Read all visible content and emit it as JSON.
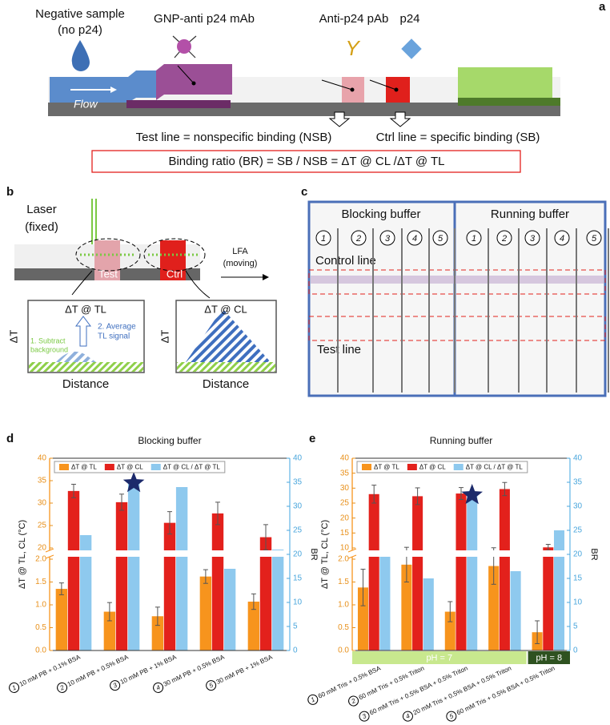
{
  "panel_a": {
    "label": "a",
    "negative_sample": "Negative sample",
    "no_p24": "(no p24)",
    "gnp": "GNP-anti p24 mAb",
    "pab": "Anti-p24 pAb",
    "pab_symbol": "Y",
    "p24": "p24",
    "flow": "Flow",
    "test_line": "Test line = nonspecific binding (NSB)",
    "ctrl_line": "Ctrl line = specific binding (SB)",
    "binding_ratio": "Binding ratio (BR) = SB / NSB = ΔT @ CL /ΔT @ TL"
  },
  "panel_b": {
    "label": "b",
    "laser": "Laser",
    "fixed": "(fixed)",
    "lfa": "LFA",
    "moving": "(moving)",
    "test": "Test",
    "ctrl": "Ctrl",
    "tl_title": "ΔT @ TL",
    "cl_title": "ΔT @ CL",
    "delta_t_left": "ΔT",
    "delta_t_right": "ΔT",
    "distance_left": "Distance",
    "distance_right": "Distance",
    "step1": "1. Subtract",
    "step1b": "background",
    "step2": "2. Average",
    "step2b": "TL signal"
  },
  "panel_c": {
    "label": "c",
    "blocking": "Blocking buffer",
    "running": "Running buffer",
    "strip_numbers": [
      "1",
      "2",
      "3",
      "4",
      "5",
      "1",
      "2",
      "3",
      "4",
      "5"
    ],
    "control_line": "Control line",
    "test_line": "Test line"
  },
  "chart_data": [
    {
      "type": "bar",
      "label": "d",
      "title": "Blocking buffer",
      "categories": [
        "10 mM PB + 0.1% BSA",
        "10 mM PB + 0.5% BSA",
        "10 mM PB + 1% BSA",
        "30 mM PB + 0.5% BSA",
        "30 mM PB + 1% BSA"
      ],
      "category_markers": [
        "1",
        "2",
        "3",
        "4",
        "5"
      ],
      "series": [
        {
          "name": "ΔT @ TL",
          "color": "#f7941d",
          "axis": "y",
          "values": [
            1.35,
            0.85,
            0.75,
            1.62,
            1.07
          ],
          "errors": [
            0.13,
            0.2,
            0.2,
            0.15,
            0.17
          ]
        },
        {
          "name": "ΔT @ CL",
          "color": "#e3211c",
          "axis": "y_upper",
          "values": [
            32.7,
            30.2,
            25.6,
            27.7,
            22.4
          ],
          "errors": [
            1.5,
            1.8,
            2.5,
            2.5,
            2.8
          ]
        },
        {
          "name": "ΔT @ CL / ΔT @ TL",
          "color": "#8ec9ee",
          "axis": "y2",
          "values": [
            24,
            35.5,
            34,
            17,
            21
          ]
        }
      ],
      "ylim": [
        0,
        2
      ],
      "yticks": [
        {
          "value": 0,
          "label": "0.0"
        },
        0.5,
        {
          "value": 1,
          "label": "1.0"
        },
        1.5,
        {
          "value": 2,
          "label": "2.0"
        }
      ],
      "y_upper_lim": [
        20,
        40
      ],
      "y_upper_ticks": [
        20,
        25,
        30,
        35,
        40
      ],
      "y2lim": [
        0,
        40
      ],
      "y2ticks": [
        0,
        5,
        10,
        15,
        20,
        25,
        30,
        35,
        40
      ],
      "ylabel": "ΔT @ TL, CL (°C)",
      "y2label": "BR",
      "star_index": 1
    },
    {
      "type": "bar",
      "label": "e",
      "title": "Running buffer",
      "categories": [
        "60 mM Tris + 0.5% BSA",
        "60 mM Tris + 0.5% Triton",
        "60 mM Tris + 0.5% BSA + 0.5% Triton",
        "20 mM Tris + 0.5% BSA + 0.5% Triton",
        "60 mM Tris + 0.5% BSA + 0.5% Triton"
      ],
      "category_markers": [
        "1",
        "2",
        "3",
        "4",
        "5"
      ],
      "series": [
        {
          "name": "ΔT @ TL",
          "color": "#f7941d",
          "axis": "y",
          "values": [
            1.38,
            1.88,
            0.85,
            1.85,
            0.4
          ],
          "errors": [
            0.4,
            0.38,
            0.22,
            0.4,
            0.25
          ]
        },
        {
          "name": "ΔT @ CL",
          "color": "#e3211c",
          "axis": "y_upper",
          "values": [
            28,
            27.3,
            28.2,
            29.7,
            10.2
          ],
          "errors": [
            3,
            2.8,
            2,
            2.2,
            1
          ]
        },
        {
          "name": "ΔT @ CL / ΔT @ TL",
          "color": "#8ec9ee",
          "axis": "y2",
          "values": [
            20.5,
            15,
            33,
            16.5,
            25
          ]
        }
      ],
      "ylim": [
        0,
        2
      ],
      "yticks": [
        {
          "value": 0,
          "label": "0.0"
        },
        0.5,
        {
          "value": 1,
          "label": "1.0"
        },
        1.5,
        {
          "value": 2,
          "label": "2.0"
        }
      ],
      "y_upper_lim": [
        10,
        40
      ],
      "y_upper_ticks": [
        10,
        15,
        20,
        25,
        30,
        35,
        40
      ],
      "y2lim": [
        0,
        40
      ],
      "y2ticks": [
        0,
        5,
        10,
        15,
        20,
        25,
        30,
        35,
        40
      ],
      "ylabel": "ΔT @ TL, CL (°C)",
      "y2label": "BR",
      "star_index": 2,
      "ph_bands": [
        {
          "label": "pH = 7",
          "color": "#c8e88e",
          "from": 0,
          "to": 3
        },
        {
          "label": "pH = 8",
          "color": "#2e5220",
          "from": 4,
          "to": 4
        }
      ]
    }
  ]
}
